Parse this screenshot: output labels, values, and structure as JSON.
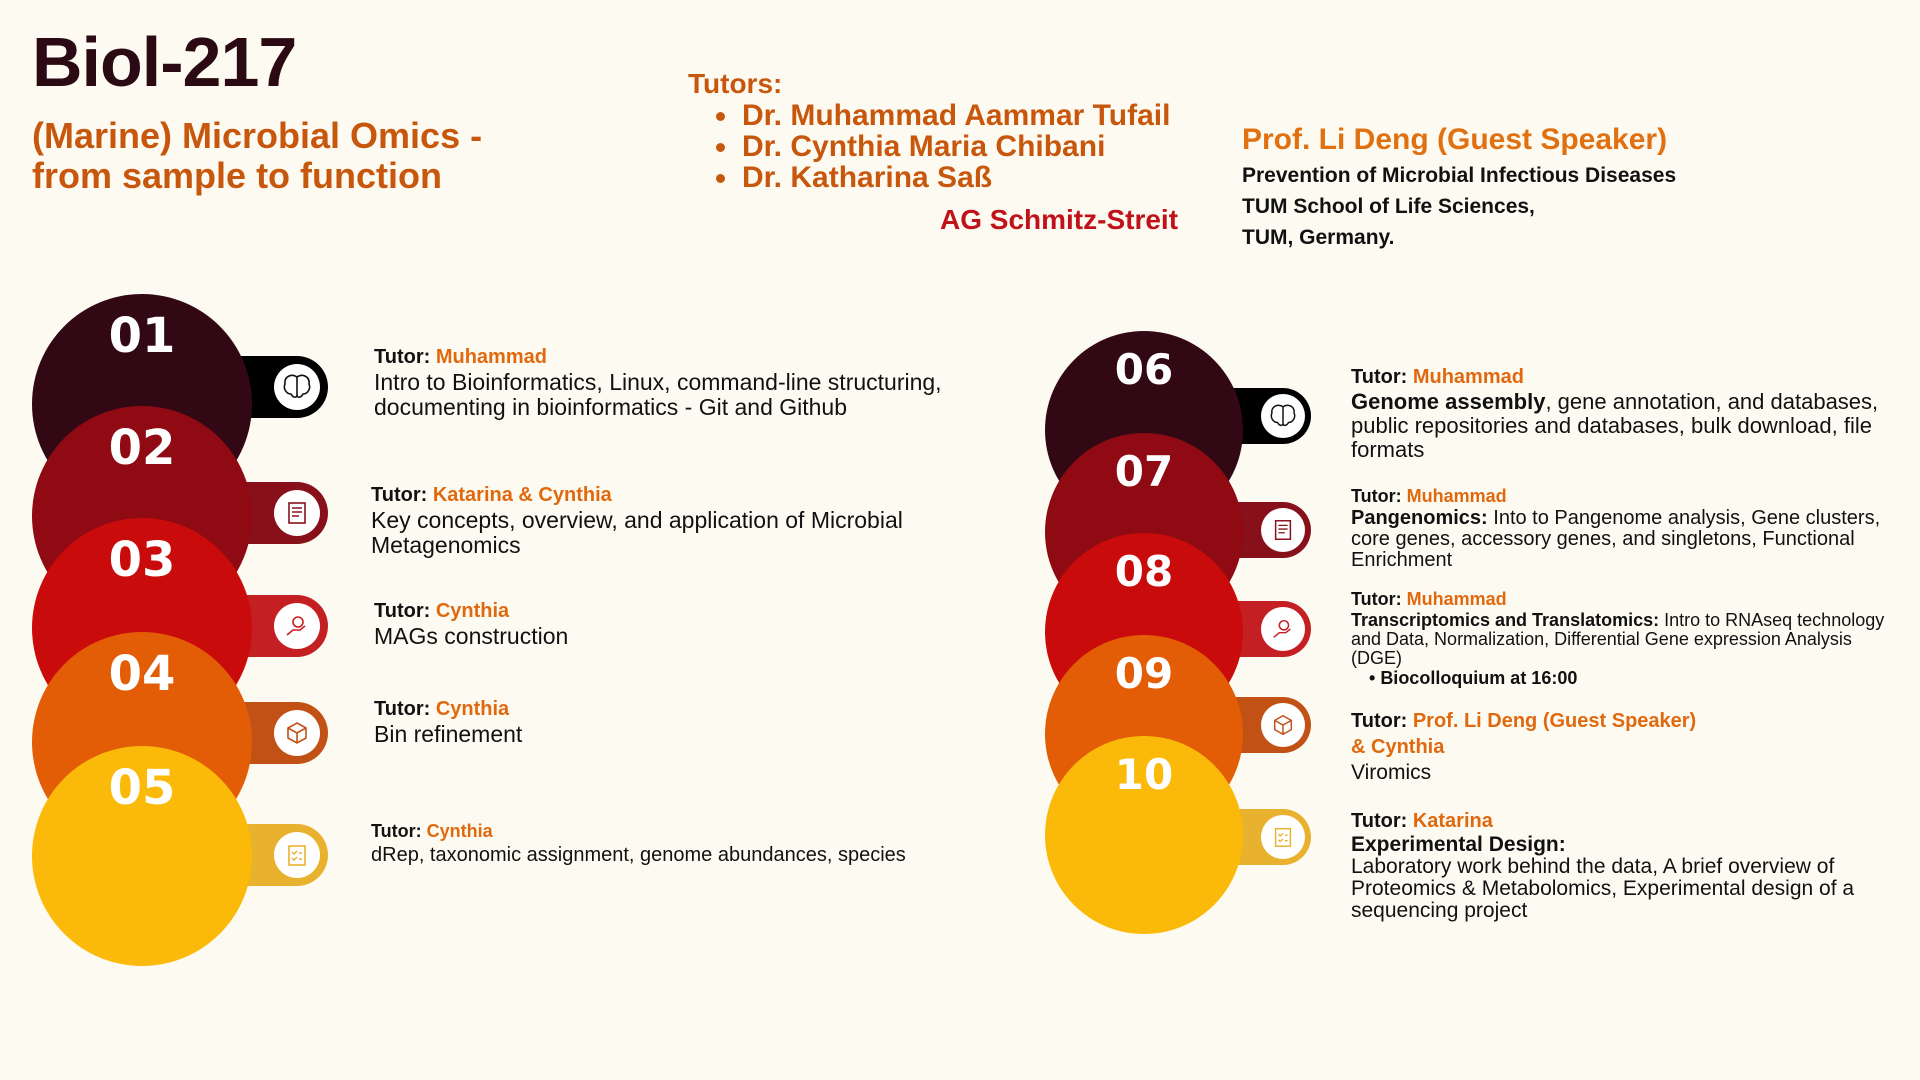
{
  "header": {
    "course_code": "Biol-217",
    "title_line1": "(Marine) Microbial Omics -",
    "title_line2": "from sample to function",
    "tutors_heading": "Tutors:",
    "tutors": [
      "Dr. Muhammad Aammar Tufail",
      "Dr. Cynthia Maria Chibani",
      "Dr. Katharina Saß"
    ],
    "group": "AG Schmitz-Streit",
    "guest": {
      "name": "Prof. Li Deng (Guest Speaker)",
      "line1": "Prevention of Microbial Infectious Diseases",
      "line2": "TUM School of Life Sciences,",
      "line3": "TUM, Germany."
    }
  },
  "colors": {
    "c1": "#320814",
    "c2": "#8f0a12",
    "c3": "#c90b0b",
    "c4": "#e35d06",
    "c5": "#fbb90a",
    "t1": "#000000",
    "t2": "#88101a",
    "t3": "#c41f23",
    "t4": "#c25115",
    "t5": "#e8b22f"
  },
  "tutor_prefix": "Tutor: ",
  "days": [
    {
      "num": "01",
      "tutor": "Muhammad",
      "desc_bold": "",
      "desc": "Intro to Bioinformatics, Linux, command-line structuring, documenting in bioinformatics - Git and Github",
      "icon": "brain-icon"
    },
    {
      "num": "02",
      "tutor": "Katarina & Cynthia",
      "desc_bold": "",
      "desc": "Key concepts, overview, and application of Microbial Metagenomics",
      "icon": "notes-icon"
    },
    {
      "num": "03",
      "tutor": "Cynthia",
      "desc_bold": "",
      "desc": "MAGs construction",
      "icon": "idea-hand-icon"
    },
    {
      "num": "04",
      "tutor": "Cynthia",
      "desc_bold": "",
      "desc": "Bin refinement",
      "icon": "cube-icon"
    },
    {
      "num": "05",
      "tutor": "Cynthia",
      "desc_bold": "",
      "desc": "dRep, taxonomic assignment, genome abundances, species",
      "icon": "clipboard-icon"
    },
    {
      "num": "06",
      "tutor": "Muhammad",
      "desc_bold": "Genome assembly",
      "desc": ", gene annotation, and databases, public repositories and databases, bulk download, file formats",
      "icon": "brain-icon"
    },
    {
      "num": "07",
      "tutor": "Muhammad",
      "desc_bold": "Pangenomics:",
      "desc": " Into to Pangenome analysis, Gene clusters, core genes, accessory genes, and singletons, Functional Enrichment",
      "icon": "notes-icon"
    },
    {
      "num": "08",
      "tutor": "Muhammad",
      "desc_bold": "Transcriptomics and Translatomics:",
      "desc": " Intro to RNAseq technology and Data, Normalization, Differential Gene expression Analysis (DGE)",
      "bullet": "Biocolloquium at 16:00",
      "icon": "idea-hand-icon"
    },
    {
      "num": "09",
      "tutor": "Prof. Li Deng (Guest Speaker)",
      "tutor2": "& Cynthia",
      "desc_bold": "",
      "desc": "Viromics",
      "icon": "cube-icon"
    },
    {
      "num": "10",
      "tutor": "Katarina",
      "desc_bold": "Experimental Design:",
      "desc": "Laboratory work behind the data, A brief overview of Proteomics & Metabolomics, Experimental design of a sequencing project",
      "icon": "clipboard-icon"
    }
  ]
}
